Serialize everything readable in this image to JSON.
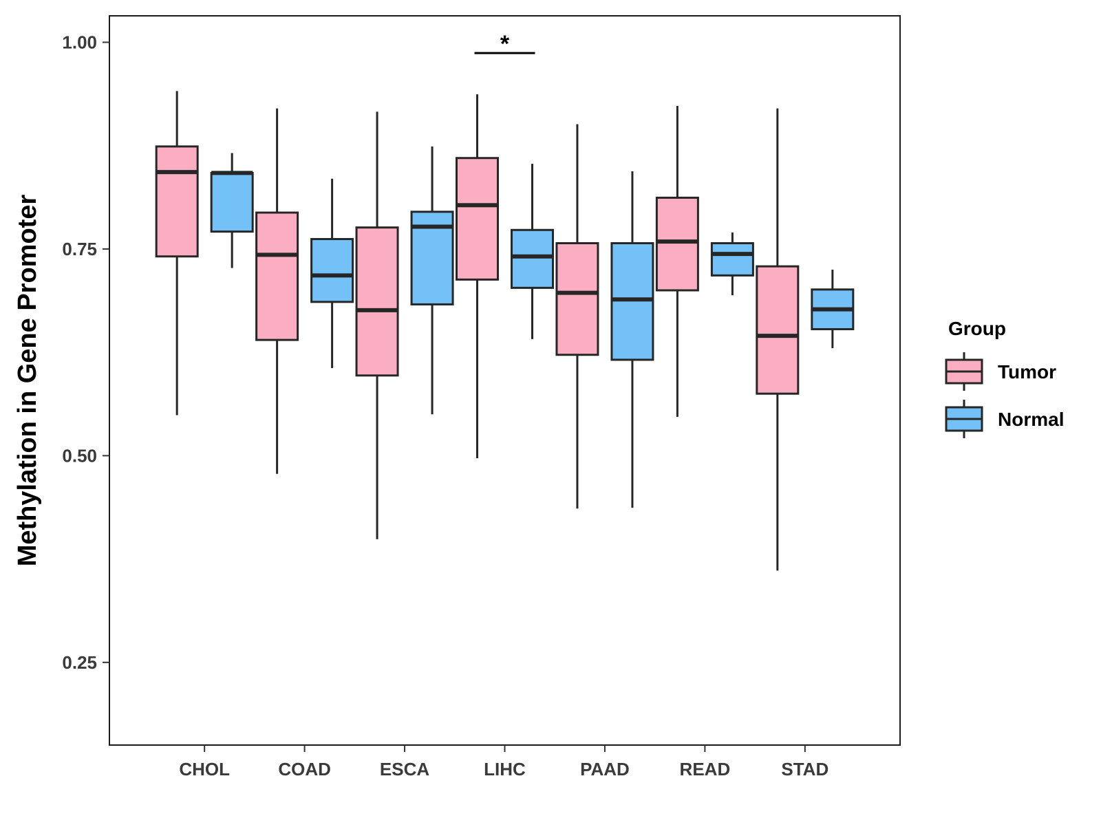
{
  "chart_data": {
    "type": "boxplot",
    "title": "",
    "xlabel": "",
    "ylabel": "Methylation in Gene Promoter",
    "ylim": [
      0.15,
      1.032
    ],
    "yticks": [
      0.25,
      0.5,
      0.75,
      1.0
    ],
    "ytick_labels": [
      "0.25",
      "0.50",
      "0.75",
      "1.00"
    ],
    "categories": [
      "CHOL",
      "COAD",
      "ESCA",
      "LIHC",
      "PAAD",
      "READ",
      "STAD"
    ],
    "legend": {
      "title": "Group",
      "position": "right",
      "entries": [
        {
          "name": "Tumor",
          "color": "#FBAEC1"
        },
        {
          "name": "Normal",
          "color": "#74C1F7"
        }
      ]
    },
    "series": [
      {
        "name": "Tumor",
        "color": "#FBAEC1",
        "boxes": [
          {
            "min": 0.549,
            "q1": 0.741,
            "median": 0.843,
            "q3": 0.874,
            "max": 0.941
          },
          {
            "min": 0.478,
            "q1": 0.64,
            "median": 0.743,
            "q3": 0.794,
            "max": 0.92
          },
          {
            "min": 0.399,
            "q1": 0.597,
            "median": 0.676,
            "q3": 0.776,
            "max": 0.916
          },
          {
            "min": 0.497,
            "q1": 0.713,
            "median": 0.803,
            "q3": 0.86,
            "max": 0.937
          },
          {
            "min": 0.436,
            "q1": 0.622,
            "median": 0.697,
            "q3": 0.757,
            "max": 0.901
          },
          {
            "min": 0.547,
            "q1": 0.7,
            "median": 0.759,
            "q3": 0.812,
            "max": 0.923
          },
          {
            "min": 0.361,
            "q1": 0.575,
            "median": 0.645,
            "q3": 0.729,
            "max": 0.92
          }
        ]
      },
      {
        "name": "Normal",
        "color": "#74C1F7",
        "boxes": [
          {
            "min": 0.727,
            "q1": 0.771,
            "median": 0.842,
            "q3": 0.842,
            "max": 0.866
          },
          {
            "min": 0.606,
            "q1": 0.686,
            "median": 0.718,
            "q3": 0.762,
            "max": 0.835
          },
          {
            "min": 0.55,
            "q1": 0.683,
            "median": 0.777,
            "q3": 0.795,
            "max": 0.874
          },
          {
            "min": 0.641,
            "q1": 0.703,
            "median": 0.741,
            "q3": 0.773,
            "max": 0.853
          },
          {
            "min": 0.437,
            "q1": 0.616,
            "median": 0.689,
            "q3": 0.757,
            "max": 0.844
          },
          {
            "min": 0.694,
            "q1": 0.718,
            "median": 0.744,
            "q3": 0.757,
            "max": 0.77
          },
          {
            "min": 0.63,
            "q1": 0.653,
            "median": 0.677,
            "q3": 0.701,
            "max": 0.725
          }
        ]
      }
    ],
    "annotations": [
      {
        "text": "*",
        "category": "LIHC",
        "y": 0.987,
        "type": "significance-bracket"
      }
    ]
  }
}
